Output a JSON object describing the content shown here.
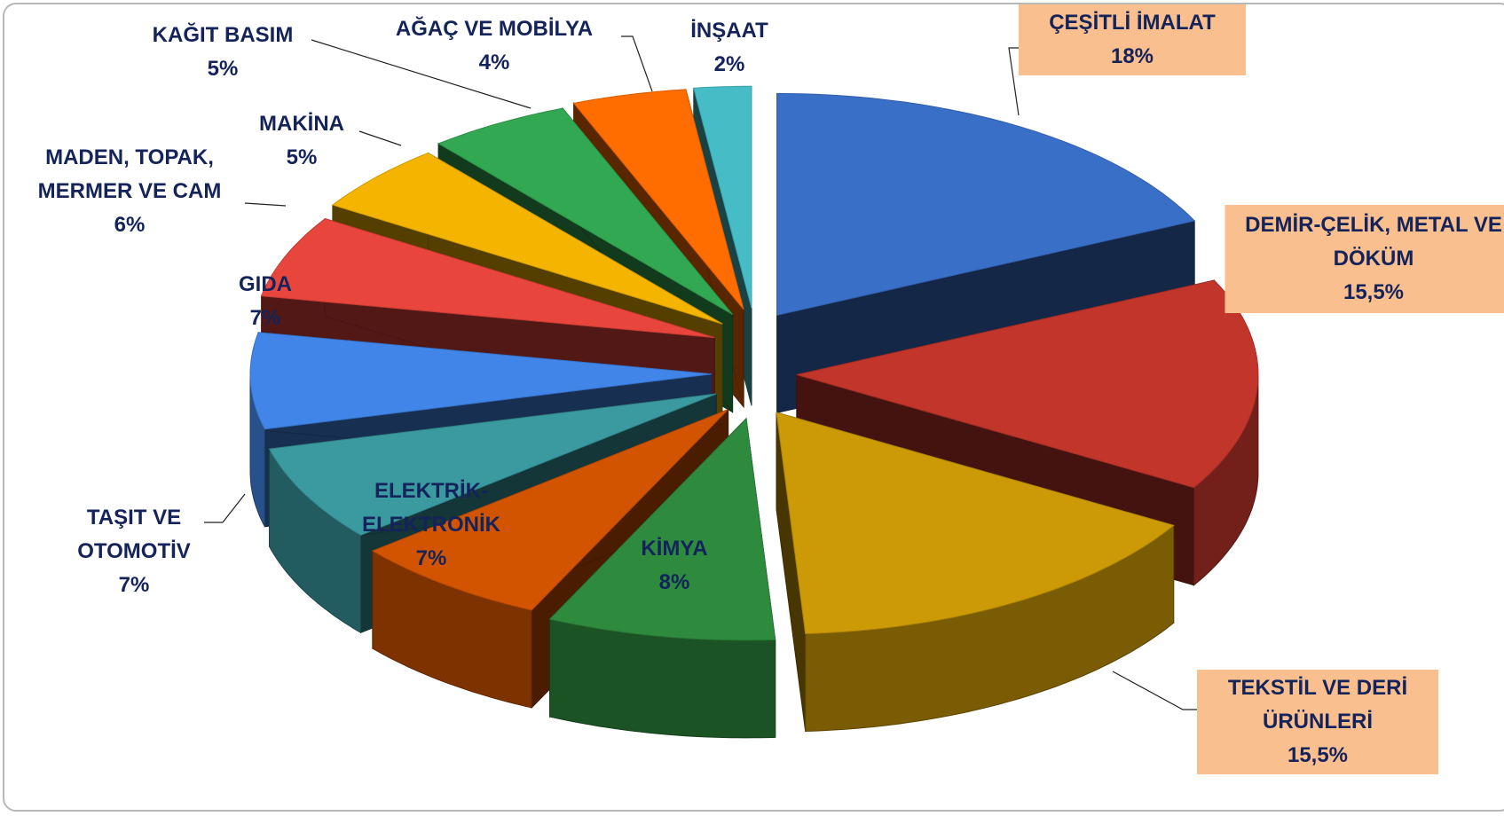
{
  "chart_data": {
    "type": "pie",
    "categories": [
      "ÇEŞİTLİ İMALAT",
      "DEMİR-ÇELİK, METAL VE DÖKÜM",
      "TEKSTİL VE DERİ ÜRÜNLERİ",
      "KİMYA",
      "ELEKTRİK-ELEKTRONİK",
      "TAŞIT VE OTOMOTİV",
      "GIDA",
      "MADEN, TOPAK, MERMER VE CAM",
      "MAKİNA",
      "KAĞIT BASIM",
      "AĞAÇ VE MOBİLYA",
      "İNŞAAT"
    ],
    "values": [
      18,
      15.5,
      15.5,
      8,
      7,
      7,
      7,
      6,
      5,
      5,
      4,
      2
    ],
    "value_labels": [
      "18%",
      "15,5%",
      "15,5%",
      "8%",
      "7%",
      "7%",
      "7%",
      "6%",
      "5%",
      "5%",
      "4%",
      "2%"
    ],
    "colors": [
      "#3a6fc8",
      "#c1352b",
      "#cc9a06",
      "#2e8b3e",
      "#d25400",
      "#3a9aa0",
      "#4285e8",
      "#e8453c",
      "#f4b400",
      "#33a853",
      "#ff6d00",
      "#46bdc6"
    ]
  }
}
